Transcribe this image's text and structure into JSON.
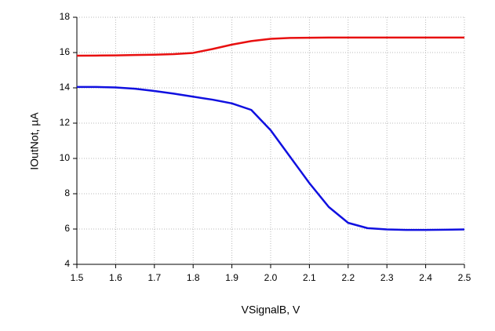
{
  "chart_data": {
    "type": "line",
    "x_label": "VSignalB, V",
    "y_label": "IOutNot, µA",
    "x": [
      1.5,
      1.55,
      1.6,
      1.65,
      1.7,
      1.75,
      1.8,
      1.85,
      1.9,
      1.95,
      2.0,
      2.05,
      2.1,
      2.15,
      2.2,
      2.25,
      2.3,
      2.35,
      2.4,
      2.45,
      2.5
    ],
    "series": [
      {
        "color": "#e81010",
        "values": [
          15.82,
          15.83,
          15.84,
          15.86,
          15.88,
          15.91,
          15.98,
          16.2,
          16.45,
          16.65,
          16.78,
          16.83,
          16.84,
          16.85,
          16.85,
          16.85,
          16.85,
          16.85,
          16.85,
          16.85,
          16.85
        ]
      },
      {
        "color": "#1010e0",
        "values": [
          14.05,
          14.05,
          14.02,
          13.95,
          13.82,
          13.67,
          13.5,
          13.33,
          13.12,
          12.75,
          11.6,
          10.1,
          8.6,
          7.25,
          6.35,
          6.05,
          5.98,
          5.95,
          5.95,
          5.96,
          5.98
        ]
      }
    ],
    "xlim": [
      1.5,
      2.5
    ],
    "xticks": [
      1.5,
      1.6,
      1.7,
      1.8,
      1.9,
      {
        "value": 2,
        "label": "2.0"
      },
      2.1,
      2.2,
      2.3,
      2.4,
      2.5
    ],
    "ylim": [
      4,
      18
    ],
    "yticks": [
      4,
      6,
      8,
      10,
      12,
      14,
      16,
      18
    ],
    "grid": true
  }
}
